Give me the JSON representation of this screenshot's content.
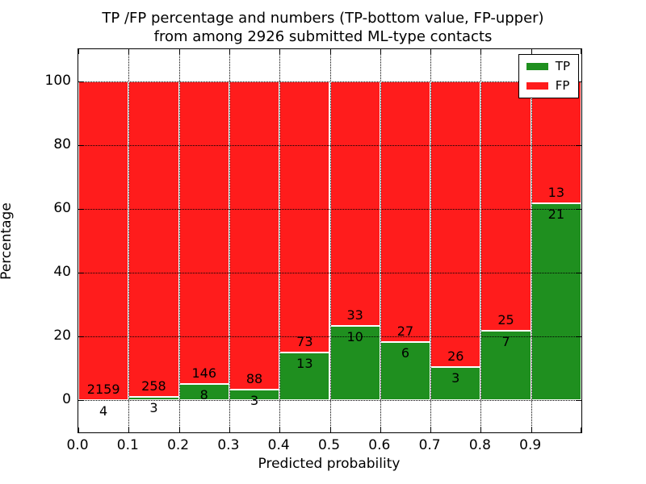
{
  "title": {
    "line1": "TP /FP percentage and numbers (TP-bottom value, FP-upper)",
    "line2": "from among 2926 submitted ML-type contacts"
  },
  "chart_data": {
    "type": "bar",
    "stacked": true,
    "title": "TP /FP percentage and numbers (TP-bottom value, FP-upper) from among 2926 submitted ML-type contacts",
    "xlabel": "Predicted probability",
    "ylabel": "Percentage",
    "total_contacts": 2926,
    "bin_edges": [
      0.0,
      0.1,
      0.2,
      0.3,
      0.4,
      0.5,
      0.6,
      0.7,
      0.8,
      0.9,
      1.0
    ],
    "xtick_labels": [
      "0.0",
      "0.1",
      "0.2",
      "0.3",
      "0.4",
      "0.5",
      "0.6",
      "0.7",
      "0.8",
      "0.9"
    ],
    "ytick_labels": [
      "0",
      "20",
      "40",
      "60",
      "80",
      "100"
    ],
    "ytick_values": [
      0,
      20,
      40,
      60,
      80,
      100
    ],
    "xlim": [
      0.0,
      1.0
    ],
    "ylim": [
      -10,
      110
    ],
    "grid": true,
    "grid_style": "dotted",
    "series": [
      {
        "name": "TP",
        "color": "#1f8f1f",
        "counts": [
          4,
          3,
          8,
          3,
          13,
          10,
          6,
          3,
          7,
          21
        ],
        "percent_of_bin": [
          0.18,
          1.15,
          5.19,
          3.3,
          15.12,
          23.26,
          18.18,
          10.34,
          21.88,
          61.76
        ]
      },
      {
        "name": "FP",
        "color": "#ff1c1c",
        "counts": [
          2159,
          258,
          146,
          88,
          73,
          33,
          27,
          26,
          25,
          13
        ],
        "percent_of_bin": [
          99.82,
          98.85,
          94.81,
          96.7,
          84.88,
          76.74,
          81.82,
          89.66,
          78.12,
          38.24
        ]
      }
    ],
    "legend": {
      "position": "upper right",
      "entries": [
        {
          "label": "TP",
          "color": "#1f8f1f"
        },
        {
          "label": "FP",
          "color": "#ff1c1c"
        }
      ]
    },
    "bar_edge_color": "#ffffff",
    "label_note": "FP count printed above TP/FP boundary, TP count printed below boundary"
  }
}
